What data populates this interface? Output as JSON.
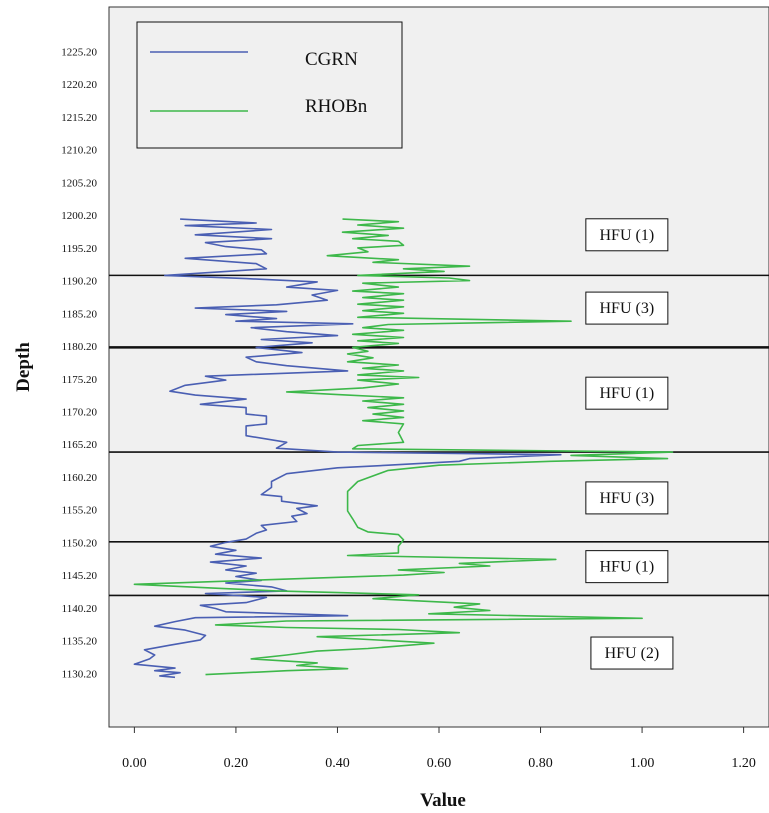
{
  "chart_data": {
    "type": "line",
    "xlabel": "Value",
    "ylabel": "Depth",
    "xlim": [
      -0.05,
      1.25
    ],
    "ylim": [
      1122,
      1232
    ],
    "x_ticks": [
      0.0,
      0.2,
      0.4,
      0.6,
      0.8,
      1.0,
      1.2
    ],
    "x_tick_labels": [
      "0.00",
      "0.20",
      "0.40",
      "0.60",
      "0.80",
      "1.00",
      "1.20"
    ],
    "y_ticks": [
      1130.2,
      1135.2,
      1140.2,
      1145.2,
      1150.2,
      1155.2,
      1160.2,
      1165.2,
      1170.2,
      1175.2,
      1180.2,
      1185.2,
      1190.2,
      1195.2,
      1200.2,
      1205.2,
      1210.2,
      1215.2,
      1220.2,
      1225.2
    ],
    "y_tick_labels": [
      "1130.20",
      "1135.20",
      "1140.20",
      "1145.20",
      "1150.20",
      "1155.20",
      "1160.20",
      "1165.20",
      "1170.20",
      "1175.20",
      "1180.20",
      "1185.20",
      "1190.20",
      "1195.20",
      "1200.20",
      "1205.20",
      "1210.20",
      "1215.20",
      "1220.20",
      "1225.20"
    ],
    "grid": false,
    "legend": "top-left",
    "series": [
      {
        "name": "CGRN",
        "color": "#4a5fb3",
        "points": [
          [
            0.09,
            1199.6
          ],
          [
            0.24,
            1199.0
          ],
          [
            0.1,
            1198.6
          ],
          [
            0.27,
            1198.0
          ],
          [
            0.12,
            1197.2
          ],
          [
            0.27,
            1196.6
          ],
          [
            0.14,
            1196.0
          ],
          [
            0.18,
            1195.4
          ],
          [
            0.25,
            1194.9
          ],
          [
            0.26,
            1194.3
          ],
          [
            0.1,
            1193.6
          ],
          [
            0.24,
            1192.8
          ],
          [
            0.26,
            1192.0
          ],
          [
            0.06,
            1191.0
          ],
          [
            0.22,
            1190.5
          ],
          [
            0.36,
            1190.0
          ],
          [
            0.3,
            1189.2
          ],
          [
            0.4,
            1188.7
          ],
          [
            0.35,
            1188.0
          ],
          [
            0.38,
            1187.2
          ],
          [
            0.28,
            1186.5
          ],
          [
            0.12,
            1186.0
          ],
          [
            0.3,
            1185.5
          ],
          [
            0.18,
            1185.0
          ],
          [
            0.28,
            1184.4
          ],
          [
            0.2,
            1184.0
          ],
          [
            0.43,
            1183.6
          ],
          [
            0.23,
            1183.0
          ],
          [
            0.3,
            1182.4
          ],
          [
            0.4,
            1181.8
          ],
          [
            0.25,
            1181.2
          ],
          [
            0.35,
            1180.7
          ],
          [
            0.24,
            1180.0
          ],
          [
            0.33,
            1179.2
          ],
          [
            0.22,
            1178.5
          ],
          [
            0.24,
            1177.8
          ],
          [
            0.3,
            1177.2
          ],
          [
            0.42,
            1176.4
          ],
          [
            0.14,
            1175.6
          ],
          [
            0.18,
            1175.0
          ],
          [
            0.1,
            1174.2
          ],
          [
            0.07,
            1173.3
          ],
          [
            0.12,
            1172.7
          ],
          [
            0.22,
            1172.1
          ],
          [
            0.13,
            1171.3
          ],
          [
            0.22,
            1170.8
          ],
          [
            0.22,
            1169.8
          ],
          [
            0.26,
            1169.5
          ],
          [
            0.26,
            1168.3
          ],
          [
            0.22,
            1168.0
          ],
          [
            0.22,
            1166.5
          ],
          [
            0.3,
            1165.5
          ],
          [
            0.28,
            1164.6
          ],
          [
            0.4,
            1164.0
          ],
          [
            0.84,
            1163.6
          ],
          [
            0.66,
            1163.0
          ],
          [
            0.64,
            1162.6
          ],
          [
            0.5,
            1162.0
          ],
          [
            0.4,
            1161.6
          ],
          [
            0.3,
            1160.7
          ],
          [
            0.27,
            1159.5
          ],
          [
            0.27,
            1158.6
          ],
          [
            0.25,
            1157.5
          ],
          [
            0.29,
            1157.2
          ],
          [
            0.29,
            1156.5
          ],
          [
            0.36,
            1155.8
          ],
          [
            0.32,
            1155.4
          ],
          [
            0.34,
            1154.6
          ],
          [
            0.31,
            1154.2
          ],
          [
            0.32,
            1153.4
          ],
          [
            0.25,
            1152.8
          ],
          [
            0.26,
            1152.1
          ],
          [
            0.24,
            1151.6
          ],
          [
            0.22,
            1150.7
          ],
          [
            0.18,
            1150.2
          ],
          [
            0.15,
            1149.6
          ],
          [
            0.2,
            1149.0
          ],
          [
            0.16,
            1148.4
          ],
          [
            0.25,
            1147.8
          ],
          [
            0.15,
            1147.2
          ],
          [
            0.22,
            1146.6
          ],
          [
            0.18,
            1146.0
          ],
          [
            0.24,
            1145.5
          ],
          [
            0.2,
            1145.0
          ],
          [
            0.25,
            1144.4
          ],
          [
            0.18,
            1144.0
          ],
          [
            0.27,
            1143.4
          ],
          [
            0.3,
            1142.8
          ],
          [
            0.14,
            1142.4
          ],
          [
            0.26,
            1141.8
          ],
          [
            0.22,
            1141.0
          ],
          [
            0.13,
            1140.6
          ],
          [
            0.16,
            1140.1
          ],
          [
            0.18,
            1139.6
          ],
          [
            0.42,
            1139.0
          ],
          [
            0.12,
            1138.7
          ],
          [
            0.08,
            1138.1
          ],
          [
            0.04,
            1137.4
          ],
          [
            0.1,
            1136.8
          ],
          [
            0.14,
            1136.0
          ],
          [
            0.13,
            1135.3
          ],
          [
            0.07,
            1134.5
          ],
          [
            0.02,
            1133.8
          ],
          [
            0.04,
            1133.0
          ],
          [
            0.03,
            1132.4
          ],
          [
            0.0,
            1131.6
          ],
          [
            0.08,
            1131.0
          ],
          [
            0.04,
            1130.6
          ],
          [
            0.09,
            1130.3
          ],
          [
            0.05,
            1129.8
          ],
          [
            0.08,
            1129.6
          ]
        ]
      },
      {
        "name": "RHOBn",
        "color": "#3db84a",
        "points": [
          [
            0.41,
            1199.6
          ],
          [
            0.52,
            1199.2
          ],
          [
            0.44,
            1198.7
          ],
          [
            0.53,
            1198.2
          ],
          [
            0.41,
            1197.6
          ],
          [
            0.5,
            1197.1
          ],
          [
            0.43,
            1196.6
          ],
          [
            0.52,
            1196.2
          ],
          [
            0.53,
            1195.6
          ],
          [
            0.44,
            1195.2
          ],
          [
            0.46,
            1194.6
          ],
          [
            0.38,
            1194.0
          ],
          [
            0.52,
            1193.4
          ],
          [
            0.47,
            1193.0
          ],
          [
            0.66,
            1192.4
          ],
          [
            0.53,
            1192.0
          ],
          [
            0.61,
            1191.6
          ],
          [
            0.44,
            1191.0
          ],
          [
            0.62,
            1190.6
          ],
          [
            0.66,
            1190.2
          ],
          [
            0.45,
            1189.8
          ],
          [
            0.52,
            1189.2
          ],
          [
            0.43,
            1188.6
          ],
          [
            0.53,
            1188.2
          ],
          [
            0.45,
            1187.6
          ],
          [
            0.53,
            1187.2
          ],
          [
            0.44,
            1186.6
          ],
          [
            0.53,
            1186.2
          ],
          [
            0.45,
            1185.6
          ],
          [
            0.53,
            1185.2
          ],
          [
            0.44,
            1184.6
          ],
          [
            0.86,
            1184.0
          ],
          [
            0.5,
            1183.5
          ],
          [
            0.45,
            1183.0
          ],
          [
            0.53,
            1182.6
          ],
          [
            0.43,
            1182.0
          ],
          [
            0.53,
            1181.5
          ],
          [
            0.44,
            1181.0
          ],
          [
            0.52,
            1180.6
          ],
          [
            0.43,
            1180.0
          ],
          [
            0.46,
            1179.4
          ],
          [
            0.42,
            1179.0
          ],
          [
            0.47,
            1178.4
          ],
          [
            0.42,
            1177.8
          ],
          [
            0.52,
            1177.3
          ],
          [
            0.45,
            1176.8
          ],
          [
            0.53,
            1176.4
          ],
          [
            0.44,
            1175.8
          ],
          [
            0.56,
            1175.4
          ],
          [
            0.44,
            1175.0
          ],
          [
            0.52,
            1174.4
          ],
          [
            0.45,
            1173.8
          ],
          [
            0.3,
            1173.2
          ],
          [
            0.42,
            1172.7
          ],
          [
            0.53,
            1172.3
          ],
          [
            0.45,
            1171.8
          ],
          [
            0.53,
            1171.3
          ],
          [
            0.46,
            1170.8
          ],
          [
            0.53,
            1170.3
          ],
          [
            0.47,
            1169.8
          ],
          [
            0.53,
            1169.3
          ],
          [
            0.45,
            1168.8
          ],
          [
            0.53,
            1168.3
          ],
          [
            0.52,
            1167.0
          ],
          [
            0.53,
            1165.5
          ],
          [
            0.44,
            1165.0
          ],
          [
            0.43,
            1164.5
          ],
          [
            1.06,
            1164.0
          ],
          [
            0.86,
            1163.5
          ],
          [
            1.05,
            1163.0
          ],
          [
            0.82,
            1162.6
          ],
          [
            0.6,
            1162.0
          ],
          [
            0.5,
            1161.2
          ],
          [
            0.44,
            1159.5
          ],
          [
            0.42,
            1158.0
          ],
          [
            0.42,
            1155.0
          ],
          [
            0.43,
            1153.8
          ],
          [
            0.44,
            1152.5
          ],
          [
            0.46,
            1151.8
          ],
          [
            0.52,
            1151.4
          ],
          [
            0.53,
            1150.6
          ],
          [
            0.52,
            1149.6
          ],
          [
            0.52,
            1148.6
          ],
          [
            0.42,
            1148.2
          ],
          [
            0.83,
            1147.6
          ],
          [
            0.64,
            1147.0
          ],
          [
            0.7,
            1146.6
          ],
          [
            0.52,
            1146.0
          ],
          [
            0.61,
            1145.6
          ],
          [
            0.53,
            1145.2
          ],
          [
            0.0,
            1143.8
          ],
          [
            0.16,
            1143.2
          ],
          [
            0.28,
            1142.8
          ],
          [
            0.42,
            1142.5
          ],
          [
            0.56,
            1142.2
          ],
          [
            0.47,
            1141.6
          ],
          [
            0.68,
            1140.8
          ],
          [
            0.63,
            1140.3
          ],
          [
            0.7,
            1139.8
          ],
          [
            0.58,
            1139.3
          ],
          [
            1.0,
            1138.6
          ],
          [
            0.3,
            1138.2
          ],
          [
            0.16,
            1137.6
          ],
          [
            0.3,
            1137.2
          ],
          [
            0.52,
            1136.9
          ],
          [
            0.64,
            1136.4
          ],
          [
            0.36,
            1135.8
          ],
          [
            0.5,
            1135.2
          ],
          [
            0.59,
            1134.8
          ],
          [
            0.46,
            1134.0
          ],
          [
            0.36,
            1133.6
          ],
          [
            0.3,
            1133.0
          ],
          [
            0.23,
            1132.4
          ],
          [
            0.36,
            1131.8
          ],
          [
            0.32,
            1131.4
          ],
          [
            0.42,
            1130.9
          ],
          [
            0.3,
            1130.6
          ],
          [
            0.14,
            1130.0
          ]
        ]
      }
    ],
    "zone_boundaries": [
      1191.0,
      1180.0,
      1164.0,
      1150.3,
      1142.1
    ],
    "zone_labels": [
      {
        "text": "HFU (1)",
        "depth": 1197.2,
        "x": 0.97
      },
      {
        "text": "HFU (3)",
        "depth": 1186.0,
        "x": 0.97
      },
      {
        "text": "HFU (1)",
        "depth": 1173.0,
        "x": 0.97
      },
      {
        "text": "HFU (3)",
        "depth": 1157.0,
        "x": 0.97
      },
      {
        "text": "HFU (1)",
        "depth": 1146.5,
        "x": 0.97
      },
      {
        "text": "HFU (2)",
        "depth": 1133.3,
        "x": 0.98
      }
    ]
  }
}
